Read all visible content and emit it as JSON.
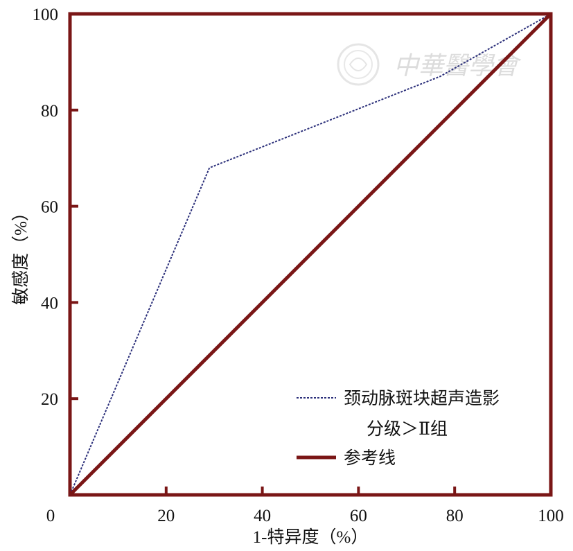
{
  "chart_data": {
    "type": "line",
    "xlabel": "1-特异度（%）",
    "ylabel": "敏感度（%）",
    "xlim": [
      0,
      100
    ],
    "ylim": [
      0,
      100
    ],
    "x_ticks": [
      0,
      20,
      40,
      60,
      80,
      100
    ],
    "y_ticks": [
      20,
      40,
      60,
      80,
      100
    ],
    "origin_label": "0",
    "grid": false,
    "legend_position": "bottom-right",
    "series": [
      {
        "name": "颈动脉斑块超声造影分级＞Ⅱ组",
        "legend_lines": [
          "颈动脉斑块超声造影",
          "分级＞Ⅱ组"
        ],
        "style": "dashed",
        "color": "#2b2f7a",
        "x": [
          0,
          29,
          77,
          100
        ],
        "y": [
          0,
          68,
          87,
          100
        ]
      },
      {
        "name": "参考线",
        "legend_lines": [
          "参考线"
        ],
        "style": "solid",
        "color": "#7a1616",
        "x": [
          0,
          100
        ],
        "y": [
          0,
          100
        ]
      }
    ],
    "frame_color": "#7a1616"
  },
  "watermark": {
    "text": "中華醫學會",
    "seal_icon": "medical-association-seal-icon"
  }
}
